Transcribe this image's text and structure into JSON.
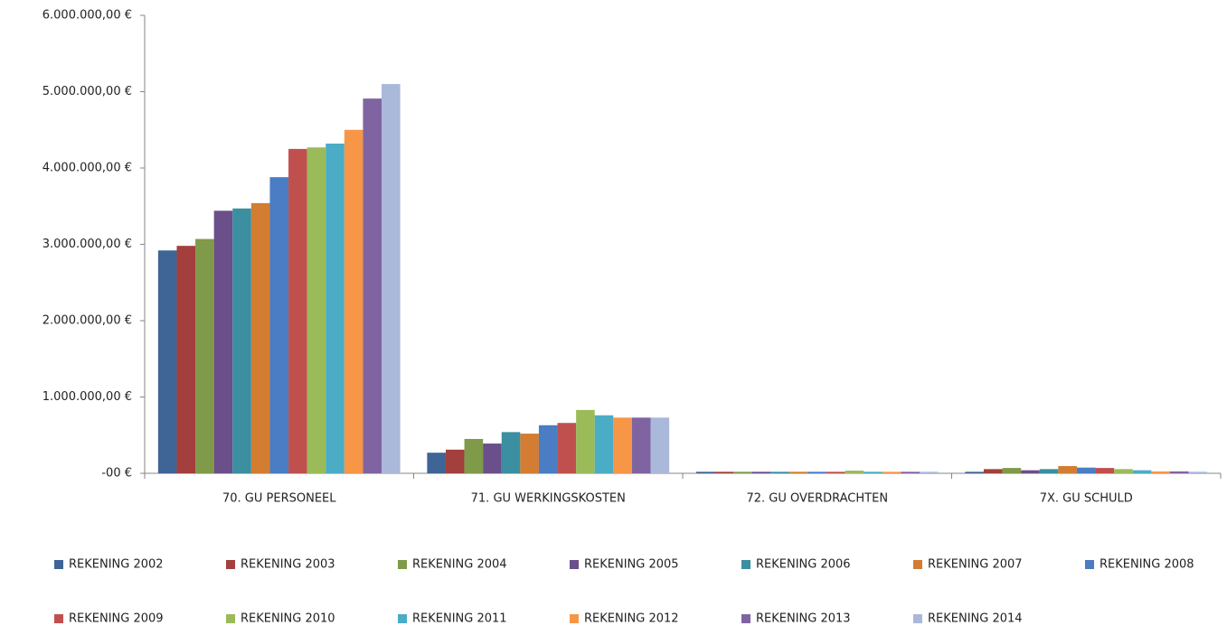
{
  "chart_data": {
    "type": "bar",
    "categories": [
      "70. GU PERSONEEL",
      "71. GU WERKINGSKOSTEN",
      "72. GU OVERDRACHTEN",
      "7X. GU SCHULD"
    ],
    "series": [
      {
        "name": "REKENING 2002",
        "color": "#3f6496",
        "values": [
          2920000,
          270000,
          20000,
          20000
        ]
      },
      {
        "name": "REKENING 2003",
        "color": "#a33f3c",
        "values": [
          2980000,
          310000,
          20000,
          55000
        ]
      },
      {
        "name": "REKENING 2004",
        "color": "#7f9a48",
        "values": [
          3070000,
          450000,
          20000,
          70000
        ]
      },
      {
        "name": "REKENING 2005",
        "color": "#6a4f8a",
        "values": [
          3440000,
          390000,
          20000,
          40000
        ]
      },
      {
        "name": "REKENING 2006",
        "color": "#3b8fa0",
        "values": [
          3470000,
          540000,
          20000,
          55000
        ]
      },
      {
        "name": "REKENING 2007",
        "color": "#d27d32",
        "values": [
          3540000,
          520000,
          20000,
          95000
        ]
      },
      {
        "name": "REKENING 2008",
        "color": "#4a7dc3",
        "values": [
          3880000,
          630000,
          20000,
          75000
        ]
      },
      {
        "name": "REKENING 2009",
        "color": "#c0504d",
        "values": [
          4250000,
          660000,
          20000,
          70000
        ]
      },
      {
        "name": "REKENING 2010",
        "color": "#9bbb59",
        "values": [
          4270000,
          830000,
          35000,
          55000
        ]
      },
      {
        "name": "REKENING 2011",
        "color": "#4bacc6",
        "values": [
          4320000,
          760000,
          20000,
          40000
        ]
      },
      {
        "name": "REKENING 2012",
        "color": "#f79646",
        "values": [
          4500000,
          730000,
          20000,
          25000
        ]
      },
      {
        "name": "REKENING 2013",
        "color": "#8064a2",
        "values": [
          4910000,
          730000,
          20000,
          25000
        ]
      },
      {
        "name": "REKENING 2014",
        "color": "#aab9da",
        "values": [
          5100000,
          730000,
          20000,
          20000
        ]
      }
    ],
    "ylim": [
      0,
      6000000
    ],
    "yticks": [
      {
        "value": 0,
        "label": "-00 €"
      },
      {
        "value": 1000000,
        "label": "1.000.000,00 €"
      },
      {
        "value": 2000000,
        "label": "2.000.000,00 €"
      },
      {
        "value": 3000000,
        "label": "3.000.000,00 €"
      },
      {
        "value": 4000000,
        "label": "4.000.000,00 €"
      },
      {
        "value": 5000000,
        "label": "5.000.000,00 €"
      },
      {
        "value": 6000000,
        "label": "6.000.000,00 €"
      }
    ],
    "grid": false
  }
}
